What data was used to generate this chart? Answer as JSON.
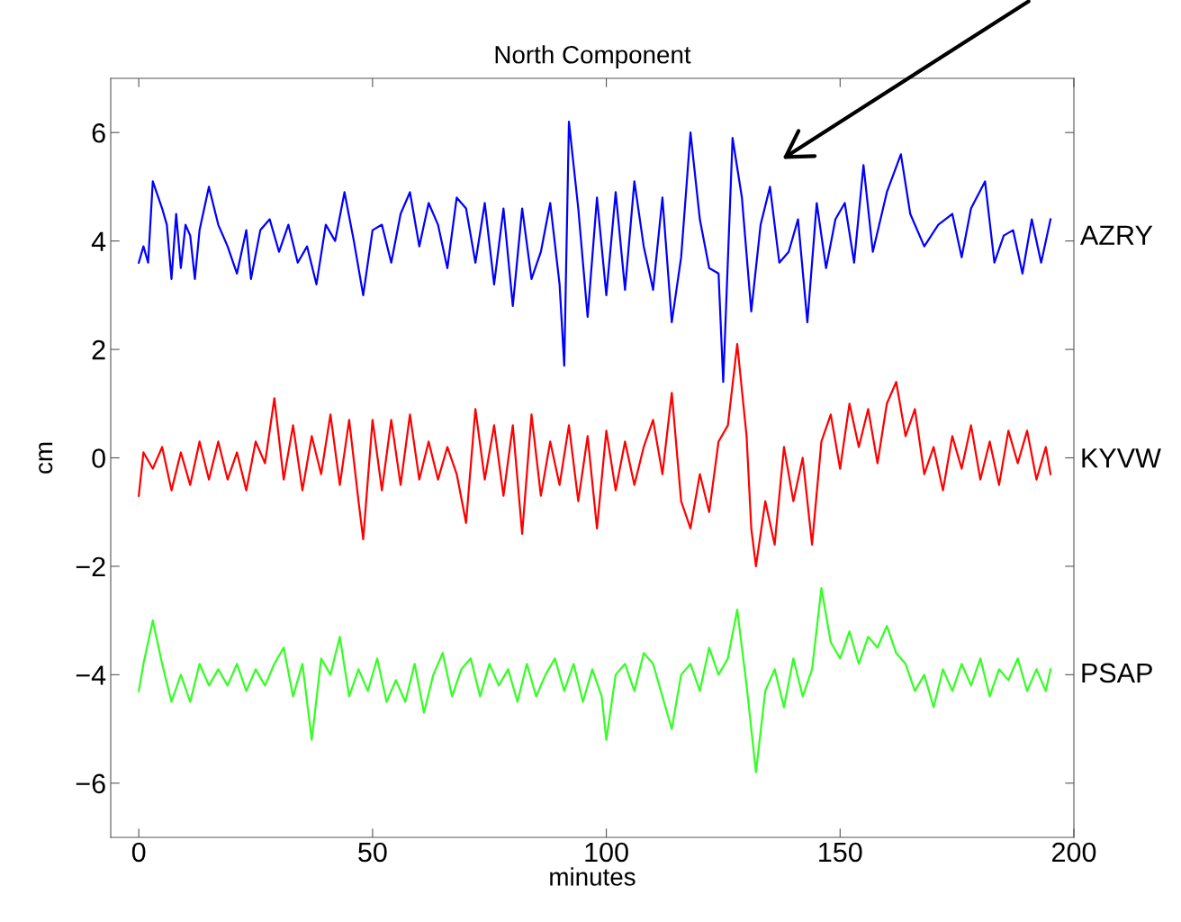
{
  "chart_data": {
    "type": "line",
    "title": "North Component",
    "xlabel": "minutes",
    "ylabel": "cm",
    "xlim": [
      -6,
      200
    ],
    "xticks": [
      0,
      50,
      100,
      150,
      200
    ],
    "ylim": [
      -7,
      7
    ],
    "yticks": [
      {
        "value": -6,
        "label": "−6"
      },
      {
        "value": -4,
        "label": "−4"
      },
      {
        "value": -2,
        "label": "−2"
      },
      0,
      2,
      4,
      6
    ],
    "grid": false,
    "legend": false,
    "marker": "none",
    "line_style": "solid",
    "series": [
      {
        "name": "AZRY",
        "color": "#0000ff",
        "x": [
          0,
          1,
          2,
          3,
          5,
          6,
          7,
          8,
          9,
          10,
          11,
          12,
          13,
          15,
          17,
          19,
          21,
          23,
          24,
          26,
          28,
          30,
          32,
          34,
          36,
          38,
          40,
          42,
          44,
          46,
          48,
          50,
          52,
          54,
          56,
          58,
          60,
          62,
          64,
          66,
          68,
          70,
          72,
          74,
          76,
          78,
          80,
          82,
          84,
          86,
          88,
          90,
          91,
          92,
          94,
          96,
          98,
          100,
          102,
          104,
          106,
          108,
          110,
          112,
          114,
          116,
          118,
          120,
          122,
          124,
          125,
          127,
          129,
          131,
          133,
          135,
          137,
          139,
          141,
          143,
          145,
          147,
          149,
          151,
          153,
          155,
          157,
          160,
          163,
          165,
          168,
          171,
          174,
          176,
          178,
          181,
          183,
          185,
          187,
          189,
          191,
          193,
          195
        ],
        "values": [
          3.6,
          3.9,
          3.6,
          5.1,
          4.6,
          4.3,
          3.3,
          4.5,
          3.5,
          4.3,
          4.1,
          3.3,
          4.2,
          5.0,
          4.3,
          3.9,
          3.4,
          4.2,
          3.3,
          4.2,
          4.4,
          3.8,
          4.3,
          3.6,
          3.9,
          3.2,
          4.3,
          4.0,
          4.9,
          4.0,
          3.0,
          4.2,
          4.3,
          3.6,
          4.5,
          4.9,
          3.9,
          4.7,
          4.3,
          3.5,
          4.8,
          4.6,
          3.6,
          4.7,
          3.2,
          4.6,
          2.8,
          4.6,
          3.3,
          3.8,
          4.7,
          3.2,
          1.7,
          6.2,
          4.6,
          2.6,
          4.8,
          3.0,
          4.9,
          3.1,
          5.1,
          3.9,
          3.1,
          4.8,
          2.5,
          3.7,
          6.0,
          4.4,
          3.5,
          3.4,
          1.4,
          5.9,
          4.8,
          2.7,
          4.3,
          5.0,
          3.6,
          3.8,
          4.4,
          2.5,
          4.7,
          3.5,
          4.4,
          4.7,
          3.6,
          5.4,
          3.8,
          4.9,
          5.6,
          4.5,
          3.9,
          4.3,
          4.5,
          3.7,
          4.6,
          5.1,
          3.6,
          4.1,
          4.2,
          3.4,
          4.4,
          3.6,
          4.4
        ]
      },
      {
        "name": "KYVW",
        "color": "#ff0000",
        "x": [
          0,
          1,
          3,
          5,
          7,
          9,
          11,
          13,
          15,
          17,
          19,
          21,
          23,
          25,
          27,
          29,
          31,
          33,
          35,
          37,
          39,
          41,
          43,
          45,
          47,
          48,
          50,
          52,
          54,
          56,
          58,
          60,
          62,
          64,
          66,
          68,
          70,
          72,
          74,
          76,
          78,
          80,
          82,
          84,
          86,
          88,
          90,
          92,
          94,
          96,
          98,
          100,
          102,
          104,
          106,
          108,
          110,
          112,
          114,
          116,
          118,
          120,
          122,
          124,
          126,
          128,
          130,
          131,
          132,
          134,
          136,
          138,
          140,
          142,
          144,
          146,
          148,
          150,
          152,
          154,
          156,
          158,
          160,
          162,
          164,
          166,
          168,
          170,
          172,
          174,
          176,
          178,
          180,
          182,
          184,
          186,
          188,
          190,
          192,
          194,
          195
        ],
        "values": [
          -0.7,
          0.1,
          -0.2,
          0.2,
          -0.6,
          0.1,
          -0.5,
          0.3,
          -0.4,
          0.3,
          -0.4,
          0.1,
          -0.6,
          0.3,
          -0.1,
          1.1,
          -0.4,
          0.6,
          -0.6,
          0.4,
          -0.3,
          0.8,
          -0.5,
          0.7,
          -0.8,
          -1.5,
          0.7,
          -0.6,
          0.7,
          -0.5,
          0.8,
          -0.4,
          0.3,
          -0.4,
          0.2,
          -0.3,
          -1.2,
          0.9,
          -0.4,
          0.6,
          -0.7,
          0.6,
          -1.4,
          0.8,
          -0.7,
          0.3,
          -0.5,
          0.6,
          -0.8,
          0.4,
          -1.3,
          0.5,
          -0.6,
          0.3,
          -0.5,
          0.2,
          0.7,
          -0.3,
          1.2,
          -0.8,
          -1.3,
          -0.3,
          -1.0,
          0.3,
          0.6,
          2.1,
          0.4,
          -1.3,
          -2.0,
          -0.8,
          -1.6,
          0.2,
          -0.8,
          0.0,
          -1.6,
          0.3,
          0.8,
          -0.2,
          1.0,
          0.2,
          0.9,
          -0.1,
          1.0,
          1.4,
          0.4,
          0.9,
          -0.3,
          0.2,
          -0.6,
          0.4,
          -0.2,
          0.6,
          -0.4,
          0.3,
          -0.5,
          0.5,
          -0.1,
          0.5,
          -0.4,
          0.2,
          -0.3
        ]
      },
      {
        "name": "PSAP",
        "color": "#33ff22",
        "x": [
          0,
          1,
          3,
          5,
          7,
          9,
          11,
          13,
          15,
          17,
          19,
          21,
          23,
          25,
          27,
          29,
          31,
          33,
          35,
          37,
          39,
          41,
          43,
          45,
          47,
          49,
          51,
          53,
          55,
          57,
          59,
          61,
          63,
          65,
          67,
          69,
          71,
          73,
          75,
          77,
          79,
          81,
          83,
          85,
          87,
          89,
          91,
          93,
          95,
          97,
          99,
          100,
          102,
          104,
          106,
          108,
          110,
          112,
          114,
          116,
          118,
          120,
          122,
          124,
          126,
          128,
          130,
          132,
          134,
          136,
          138,
          140,
          142,
          144,
          146,
          148,
          150,
          152,
          154,
          156,
          158,
          160,
          162,
          164,
          166,
          168,
          170,
          172,
          174,
          176,
          178,
          180,
          182,
          184,
          186,
          188,
          190,
          192,
          194,
          195
        ],
        "values": [
          -4.3,
          -3.8,
          -3.0,
          -3.8,
          -4.5,
          -4.0,
          -4.5,
          -3.8,
          -4.2,
          -3.9,
          -4.2,
          -3.8,
          -4.3,
          -3.9,
          -4.2,
          -3.8,
          -3.5,
          -4.4,
          -3.8,
          -5.2,
          -3.7,
          -4.0,
          -3.3,
          -4.4,
          -3.9,
          -4.3,
          -3.7,
          -4.5,
          -4.1,
          -4.5,
          -3.8,
          -4.7,
          -4.0,
          -3.6,
          -4.4,
          -3.9,
          -3.7,
          -4.4,
          -3.8,
          -4.2,
          -3.9,
          -4.5,
          -3.8,
          -4.4,
          -4.0,
          -3.7,
          -4.3,
          -3.8,
          -4.5,
          -3.9,
          -4.4,
          -5.2,
          -4.0,
          -3.8,
          -4.3,
          -3.6,
          -3.8,
          -4.4,
          -5.0,
          -4.0,
          -3.8,
          -4.3,
          -3.5,
          -4.0,
          -3.7,
          -2.8,
          -4.2,
          -5.8,
          -4.3,
          -3.9,
          -4.6,
          -3.7,
          -4.4,
          -3.9,
          -2.4,
          -3.4,
          -3.7,
          -3.2,
          -3.8,
          -3.3,
          -3.5,
          -3.1,
          -3.6,
          -3.8,
          -4.3,
          -4.0,
          -4.6,
          -3.9,
          -4.3,
          -3.8,
          -4.2,
          -3.7,
          -4.4,
          -3.9,
          -4.1,
          -3.7,
          -4.3,
          -3.9,
          -4.3,
          -3.9
        ]
      }
    ]
  }
}
